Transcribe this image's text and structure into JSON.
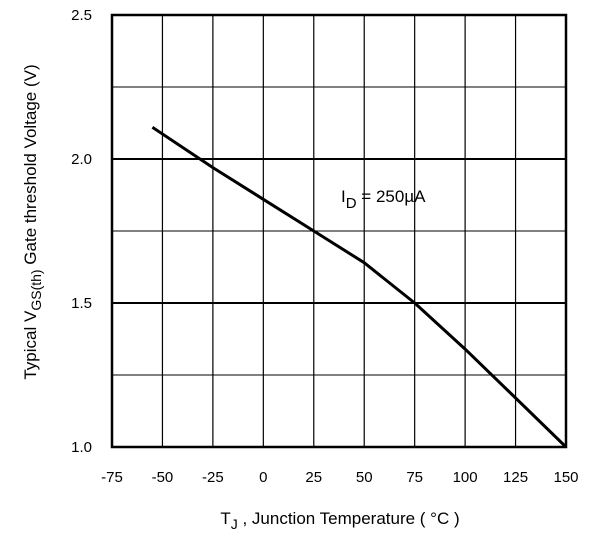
{
  "chart_data": {
    "type": "line",
    "title": "",
    "xlim": [
      -75,
      150
    ],
    "ylim": [
      1.0,
      2.5
    ],
    "x_ticks": [
      "-75",
      "-50",
      "-25",
      "0",
      "25",
      "50",
      "75",
      "100",
      "125",
      "150"
    ],
    "y_ticks": [
      "1.0",
      "1.5",
      "2.0",
      "2.5"
    ],
    "grid": true,
    "xlabel": {
      "prefix": "T",
      "sub": "J",
      "rest": " , Junction Temperature ( °C )"
    },
    "ylabel": {
      "prefix": "Typical V",
      "sub": "GS(th)",
      "rest": "  Gate threshold Voltage (V)"
    },
    "annotation": {
      "prefix": "I",
      "sub": "D",
      "rest": " = 250µA"
    },
    "series": [
      {
        "x": [
          -55,
          -25,
          0,
          25,
          50,
          75,
          100,
          125,
          150
        ],
        "y": [
          2.11,
          1.97,
          1.86,
          1.75,
          1.64,
          1.5,
          1.34,
          1.17,
          1.0
        ]
      }
    ]
  }
}
